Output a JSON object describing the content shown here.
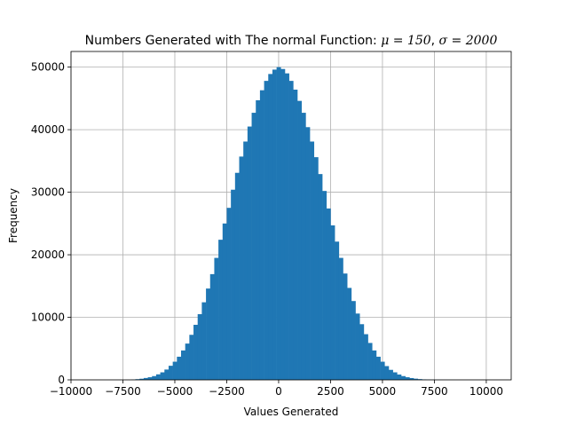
{
  "chart_data": {
    "type": "bar",
    "title_prefix": "Numbers Generated with The normal Function: ",
    "title_mu": "μ = 150",
    "title_sep": ", ",
    "title_sigma": "σ = 2000",
    "xlabel": "Values Generated",
    "ylabel": "Frequency",
    "xlim": [
      -10000,
      11200
    ],
    "ylim": [
      0,
      52500
    ],
    "xticks": [
      -10000,
      -7500,
      -5000,
      -2500,
      0,
      2500,
      5000,
      7500,
      10000
    ],
    "xtick_labels": [
      "−10000",
      "−7500",
      "−5000",
      "−2500",
      "0",
      "2500",
      "5000",
      "7500",
      "10000"
    ],
    "yticks": [
      0,
      10000,
      20000,
      30000,
      40000,
      50000
    ],
    "ytick_labels": [
      "0",
      "10000",
      "20000",
      "30000",
      "40000",
      "50000"
    ],
    "grid": true,
    "bar_color": "#1f77b4",
    "bin_start": -9500,
    "bin_width": 200,
    "values": [
      0,
      0,
      0,
      0,
      0,
      0,
      0,
      0,
      0,
      0,
      0,
      0,
      40,
      110,
      180,
      300,
      420,
      600,
      880,
      1200,
      1650,
      2250,
      2900,
      3700,
      4700,
      5800,
      7200,
      8800,
      10500,
      12400,
      14600,
      16900,
      19500,
      22400,
      25000,
      27500,
      30400,
      33100,
      35700,
      38100,
      40500,
      42700,
      44700,
      46300,
      47800,
      48900,
      49600,
      50000,
      49700,
      49000,
      47800,
      46400,
      44600,
      42700,
      40400,
      38100,
      35600,
      32900,
      30200,
      27400,
      24700,
      22100,
      19500,
      17000,
      14700,
      12600,
      10600,
      8900,
      7300,
      5900,
      4700,
      3700,
      2900,
      2200,
      1600,
      1200,
      850,
      600,
      420,
      290,
      190,
      120,
      75,
      45,
      25,
      15,
      8,
      5,
      3,
      2,
      1,
      0,
      0,
      0,
      0,
      0,
      0,
      0,
      0,
      0,
      0,
      0,
      0,
      0,
      0
    ]
  }
}
